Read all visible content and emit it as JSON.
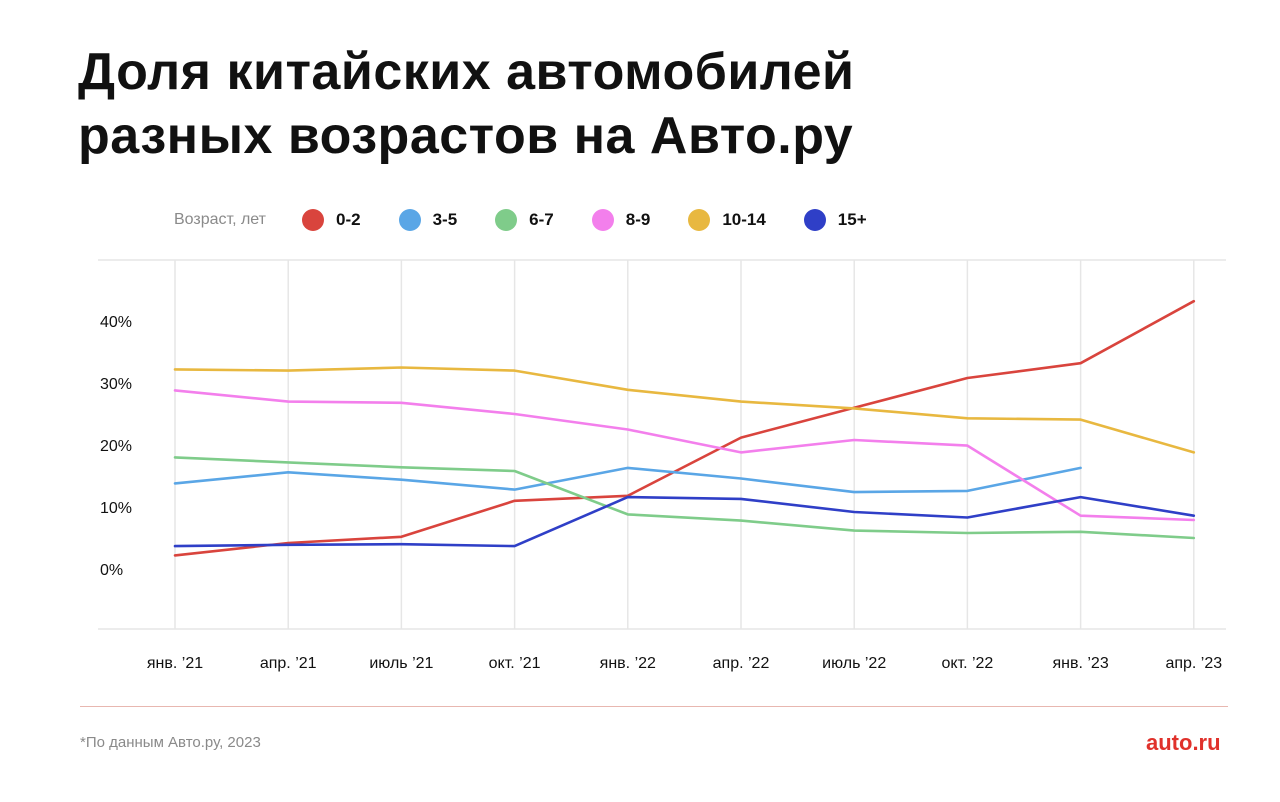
{
  "title_lines": [
    "Доля китайских автомобилей",
    "разных возрастов на Авто.ру"
  ],
  "legend_caption": "Возраст, лет",
  "footnote": "*По данным Авто.ру, 2023",
  "brand": "auto.ru",
  "chart_data": {
    "type": "line",
    "categories": [
      "янв. ’21",
      "апр. ’21",
      "июль ’21",
      "окт. ’21",
      "янв. ’22",
      "апр. ’22",
      "июль ’22",
      "окт. ’22",
      "янв. ’23",
      "апр. ’23"
    ],
    "y_ticks": [
      0,
      10,
      20,
      30,
      40
    ],
    "y_tick_labels": [
      "0%",
      "10%",
      "20%",
      "30%",
      "40%"
    ],
    "ylim": [
      -10,
      50
    ],
    "grid": "vertical",
    "legend": "top",
    "series": [
      {
        "name": "0-2",
        "color": "#d9443d",
        "values": [
          2.2,
          4.2,
          5.2,
          11.0,
          11.8,
          21.2,
          26.0,
          30.8,
          33.2,
          43.2
        ]
      },
      {
        "name": "3-5",
        "color": "#5aa6e6",
        "values": [
          13.8,
          15.6,
          14.4,
          12.8,
          16.3,
          14.6,
          12.4,
          12.6,
          16.3,
          null
        ]
      },
      {
        "name": "6-7",
        "color": "#7fcc8a",
        "values": [
          18.0,
          17.2,
          16.4,
          15.8,
          8.8,
          7.8,
          6.2,
          5.8,
          6.0,
          5.0
        ]
      },
      {
        "name": "8-9",
        "color": "#f37fec",
        "values": [
          28.8,
          27.0,
          26.8,
          25.0,
          22.5,
          18.8,
          20.8,
          19.9,
          8.6,
          7.9
        ]
      },
      {
        "name": "10-14",
        "color": "#e8b840",
        "values": [
          32.2,
          32.0,
          32.5,
          32.0,
          28.9,
          27.0,
          25.9,
          24.3,
          24.1,
          18.8
        ]
      },
      {
        "name": "15+",
        "color": "#2f3fc7",
        "values": [
          3.7,
          3.9,
          4.0,
          3.7,
          11.6,
          11.3,
          9.2,
          8.3,
          11.6,
          8.6
        ]
      }
    ]
  }
}
